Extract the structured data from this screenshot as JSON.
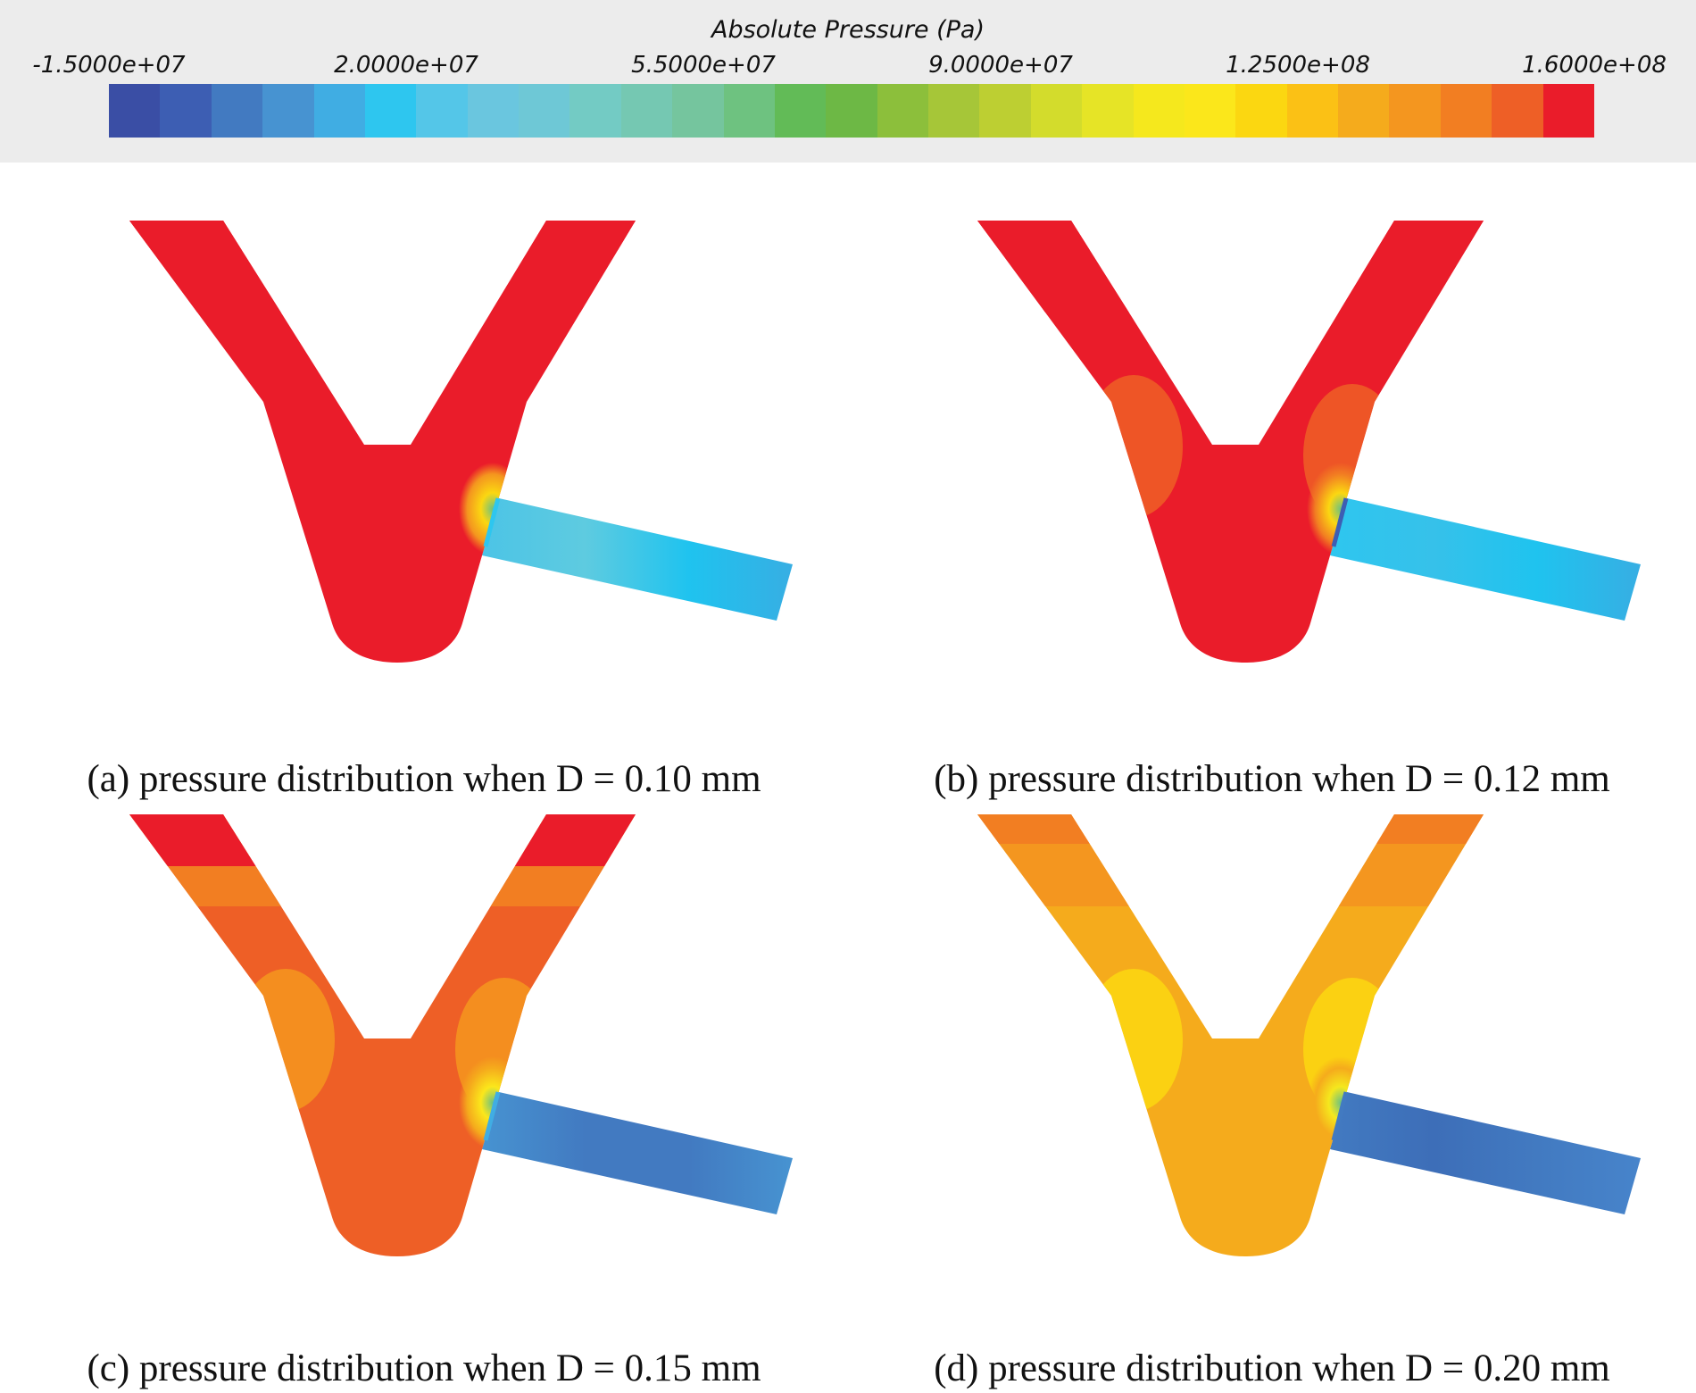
{
  "colorbar": {
    "title": "Absolute Pressure (Pa)",
    "ticks": [
      "-1.5000e+07",
      "2.0000e+07",
      "5.5000e+07",
      "9.0000e+07",
      "1.2500e+08",
      "1.6000e+08"
    ],
    "colors": [
      "#3a4ea5",
      "#3d5eb3",
      "#427ac1",
      "#4793d1",
      "#40ade3",
      "#2ec6ef",
      "#54c6e8",
      "#6ac6df",
      "#6ec8d6",
      "#73cbc4",
      "#75c8b2",
      "#75c59e",
      "#6ec280",
      "#62bb57",
      "#6db845",
      "#8cbf3b",
      "#a6c638",
      "#bdcf32",
      "#d3dc2c",
      "#e6e426",
      "#f5e81d",
      "#fbe71b",
      "#fbd711",
      "#fbc115",
      "#f5ab1c",
      "#f4961f",
      "#f27e22",
      "#ee5f26",
      "#ea1c2a"
    ]
  },
  "panels": [
    {
      "id": "a",
      "caption": "(a) pressure distribution when D = 0.10 mm",
      "body_color": "#ea1c2a",
      "upper_arm_color": "#ea1c2a",
      "tip_color": "#ea1c2a",
      "outlet_colors": [
        "#4cc4e6",
        "#5ecbe0",
        "#1fc3ef",
        "#37aee3"
      ],
      "junction_colors": [
        "#f4961f",
        "#fbd711",
        "#6ec280",
        "#2ec6ef"
      ]
    },
    {
      "id": "b",
      "caption": "(b) pressure distribution when D = 0.12 mm",
      "body_color": "#ea1c2a",
      "upper_arm_color": "#ea1c2a",
      "tip_color": "#ea1c2a",
      "shoulder_color": "#ee5f26",
      "outlet_colors": [
        "#2ec6ef",
        "#36c1ea",
        "#1fc3ef",
        "#37aee3"
      ],
      "junction_colors": [
        "#f27e22",
        "#fbd711",
        "#6ec280",
        "#3d5eb3"
      ]
    },
    {
      "id": "c",
      "caption": "(c) pressure distribution when D = 0.15 mm",
      "body_color": "#ee5f26",
      "upper_arm_color": "#f27e22",
      "tip_color": "#ea1c2a",
      "shoulder_color": "#f4961f",
      "outlet_colors": [
        "#4793d1",
        "#427ac1",
        "#427ac1",
        "#4793d1"
      ],
      "junction_colors": [
        "#f5ab1c",
        "#fbe71b",
        "#6ec280",
        "#40ade3"
      ]
    },
    {
      "id": "d",
      "caption": "(d) pressure distribution when D = 0.20 mm",
      "body_color": "#f5ab1c",
      "upper_arm_color": "#f4961f",
      "tip_color": "#f27e22",
      "shoulder_color": "#fbd711",
      "outlet_colors": [
        "#427ac1",
        "#3d6eb8",
        "#427ac1",
        "#4784cb"
      ],
      "junction_colors": [
        "#f5ab1c",
        "#f5e81d",
        "#6ec280",
        "#427ac1"
      ]
    }
  ]
}
